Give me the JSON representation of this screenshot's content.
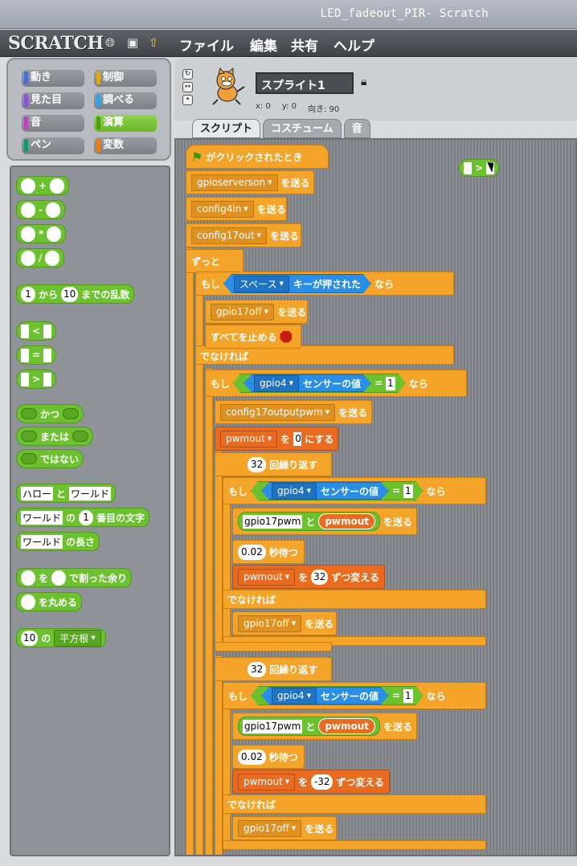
{
  "window": {
    "title": "LED_fadeout_PIR- Scratch"
  },
  "menubar": {
    "logo": "SCRATCH",
    "items": [
      "ファイル",
      "編集",
      "共有",
      "ヘルプ"
    ],
    "icons": [
      "globe-icon",
      "save-icon",
      "share-icon"
    ]
  },
  "categories": [
    {
      "label": "動き",
      "color": "#4a6cd4"
    },
    {
      "label": "制御",
      "color": "#e1a91a"
    },
    {
      "label": "見た目",
      "color": "#8a55d7"
    },
    {
      "label": "調べる",
      "color": "#2ca5e2"
    },
    {
      "label": "音",
      "color": "#bb42c3"
    },
    {
      "label": "演算",
      "color": "#5cb712",
      "active": true
    },
    {
      "label": "ペン",
      "color": "#0e9a6c"
    },
    {
      "label": "変数",
      "color": "#ee7d16"
    }
  ],
  "palette": {
    "ops": [
      "+",
      "-",
      "*",
      "/"
    ],
    "random": {
      "from": "1",
      "text1": "から",
      "to": "10",
      "text2": "までの乱数"
    },
    "compare": [
      "<",
      "=",
      ">"
    ],
    "logic": [
      "かつ",
      "または",
      "ではない"
    ],
    "join": {
      "a": "ハロー",
      "text": "と",
      "b": "ワールド"
    },
    "letter": {
      "str": "ワールド",
      "text1": "の",
      "n": "1",
      "text2": "番目の文字"
    },
    "length": {
      "str": "ワールド",
      "text": "の長さ"
    },
    "mod": {
      "text1": "を",
      "text2": "で割った余り"
    },
    "round": {
      "text": "を丸める"
    },
    "sqrt": {
      "n": "10",
      "text": "の",
      "fn": "平方根"
    }
  },
  "sprite": {
    "name": "スプライト1",
    "x_label": "x:",
    "x": "0",
    "y_label": "y:",
    "y": "0",
    "dir_label": "向き:",
    "dir": "90"
  },
  "tabs": [
    "スクリプト",
    "コスチューム",
    "音"
  ],
  "floating_block": ">",
  "script": {
    "hat": "がクリックされたとき",
    "send": "を送る",
    "b1": "gpioserverson",
    "b2": "config4in",
    "b3": "config17out",
    "forever": "ずっと",
    "if": "もし",
    "then": "なら",
    "space_key": "スペース",
    "key_pressed": "キーが押された",
    "b4": "gpio17off",
    "stop_all": "すべてを止める",
    "else": "でなければ",
    "gpio4": "gpio4",
    "sensor_value": "センサーの値",
    "eq": "=",
    "one": "1",
    "b5": "config17outputpwm",
    "pwmout": "pwmout",
    "set_to": "を",
    "zero": "0",
    "set_tail": "にする",
    "repeat_n": "32",
    "repeat": "回繰り返す",
    "gpio17pwm": "gpio17pwm",
    "and": "と",
    "wait_n": "0.02",
    "wait": "秒待つ",
    "change": "を",
    "inc": "32",
    "dec": "-32",
    "change_tail": "ずつ変える"
  }
}
